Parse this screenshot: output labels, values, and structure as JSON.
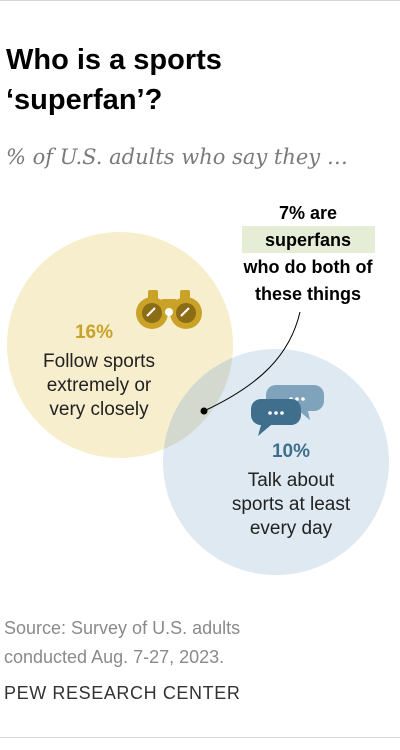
{
  "title": {
    "line1": "Who is a sports",
    "line2": "‘superfan’?"
  },
  "subtitle": "% of U.S. adults who say they …",
  "diagram": {
    "follow": {
      "value": "16%",
      "label_lines": [
        "Follow sports",
        "extremely or",
        "very closely"
      ],
      "icon": "binoculars-icon",
      "color": "#f6ecc9",
      "accent": "#c9a227"
    },
    "talk": {
      "value": "10%",
      "label_lines": [
        "Talk about",
        "sports at least",
        "every day"
      ],
      "icon": "speech-bubbles-icon",
      "color": "#d9e6ef",
      "accent": "#3f6f8c"
    },
    "overlap": {
      "callout_lines": [
        "7% are",
        "superfans",
        "who do both of",
        "these things"
      ],
      "highlight_color": "#e6edd6"
    }
  },
  "source": {
    "line1": "Source: Survey of U.S. adults",
    "line2": "conducted Aug. 7-27, 2023."
  },
  "footer": "PEW RESEARCH CENTER"
}
